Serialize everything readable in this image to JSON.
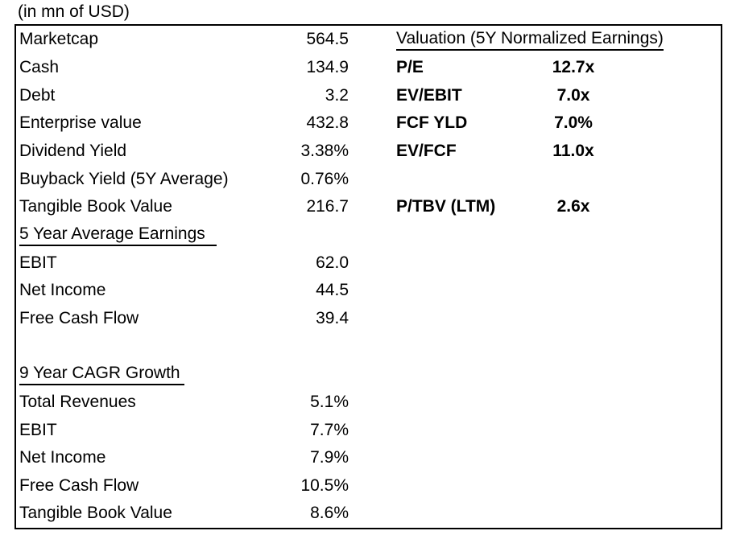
{
  "page": {
    "unit_label": "(in mn of USD)"
  },
  "colors": {
    "text": "#000000",
    "background": "#ffffff",
    "table_border": "#000000"
  },
  "metrics_table": {
    "rows": [
      {
        "label": "Marketcap",
        "value": "564.5"
      },
      {
        "label": "Cash",
        "value": "134.9"
      },
      {
        "label": "Debt",
        "value": "3.2"
      },
      {
        "label": "Enterprise value",
        "value": "432.8"
      },
      {
        "label": "Dividend Yield",
        "value": "3.38%"
      },
      {
        "label": "Buyback Yield (5Y Average)",
        "value": "0.76%"
      },
      {
        "label": "Tangible Book Value",
        "value": "216.7"
      },
      {
        "label": "5 Year Average Earnings",
        "value": "",
        "kind": "section"
      },
      {
        "label": "EBIT",
        "value": "62.0"
      },
      {
        "label": "Net Income",
        "value": "44.5"
      },
      {
        "label": "Free Cash Flow",
        "value": "39.4"
      },
      {
        "label": "",
        "value": "",
        "kind": "blank"
      },
      {
        "label": "9 Year CAGR Growth",
        "value": "",
        "kind": "section"
      },
      {
        "label": "Total Revenues",
        "value": "5.1%"
      },
      {
        "label": "EBIT",
        "value": "7.7%"
      },
      {
        "label": "Net Income",
        "value": "7.9%"
      },
      {
        "label": "Free Cash Flow",
        "value": "10.5%"
      },
      {
        "label": "Tangible Book Value",
        "value": "8.6%"
      }
    ]
  },
  "valuation": {
    "header": "Valuation (5Y Normalized Earnings)",
    "rows": [
      {
        "label": "P/E",
        "value": "12.7x"
      },
      {
        "label": "EV/EBIT",
        "value": "7.0x"
      },
      {
        "label": "FCF YLD",
        "value": "7.0%"
      },
      {
        "label": "EV/FCF",
        "value": "11.0x"
      },
      {
        "label": "P/TBV (LTM)",
        "value": "2.6x"
      }
    ]
  }
}
